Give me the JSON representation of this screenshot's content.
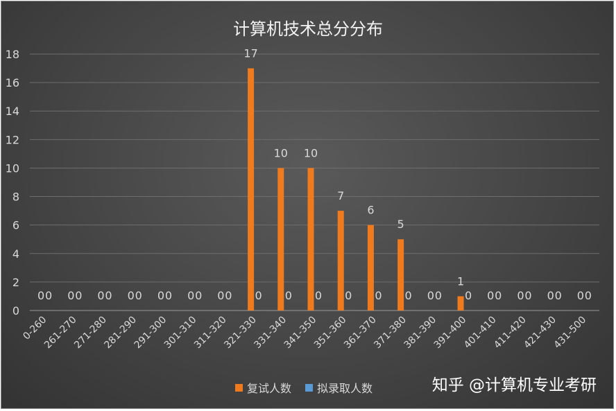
{
  "chart_data": {
    "type": "bar",
    "title": "计算机技术总分分布",
    "categories": [
      "0-260",
      "261-270",
      "271-280",
      "281-290",
      "291-300",
      "301-310",
      "311-320",
      "321-330",
      "331-340",
      "341-350",
      "351-360",
      "361-370",
      "371-380",
      "381-390",
      "391-400",
      "401-410",
      "411-420",
      "421-430",
      "431-500"
    ],
    "series": [
      {
        "name": "复试人数",
        "color": "#f07a1e",
        "values": [
          0,
          0,
          0,
          0,
          0,
          0,
          0,
          17,
          10,
          10,
          7,
          6,
          5,
          0,
          1,
          0,
          0,
          0,
          0
        ]
      },
      {
        "name": "拟录取人数",
        "color": "#5b9bd5",
        "values": [
          0,
          0,
          0,
          0,
          0,
          0,
          0,
          0,
          0,
          0,
          0,
          0,
          0,
          0,
          0,
          0,
          0,
          0,
          0
        ]
      }
    ],
    "ylim": [
      0,
      18
    ],
    "yticks": [
      0,
      2,
      4,
      6,
      8,
      10,
      12,
      14,
      16,
      18
    ],
    "grid": true,
    "legend_position": "bottom"
  },
  "watermark": "知乎 @计算机专业考研",
  "colors": {
    "background": "#404040",
    "bar_primary": "#f07a1e",
    "bar_secondary": "#5b9bd5"
  }
}
